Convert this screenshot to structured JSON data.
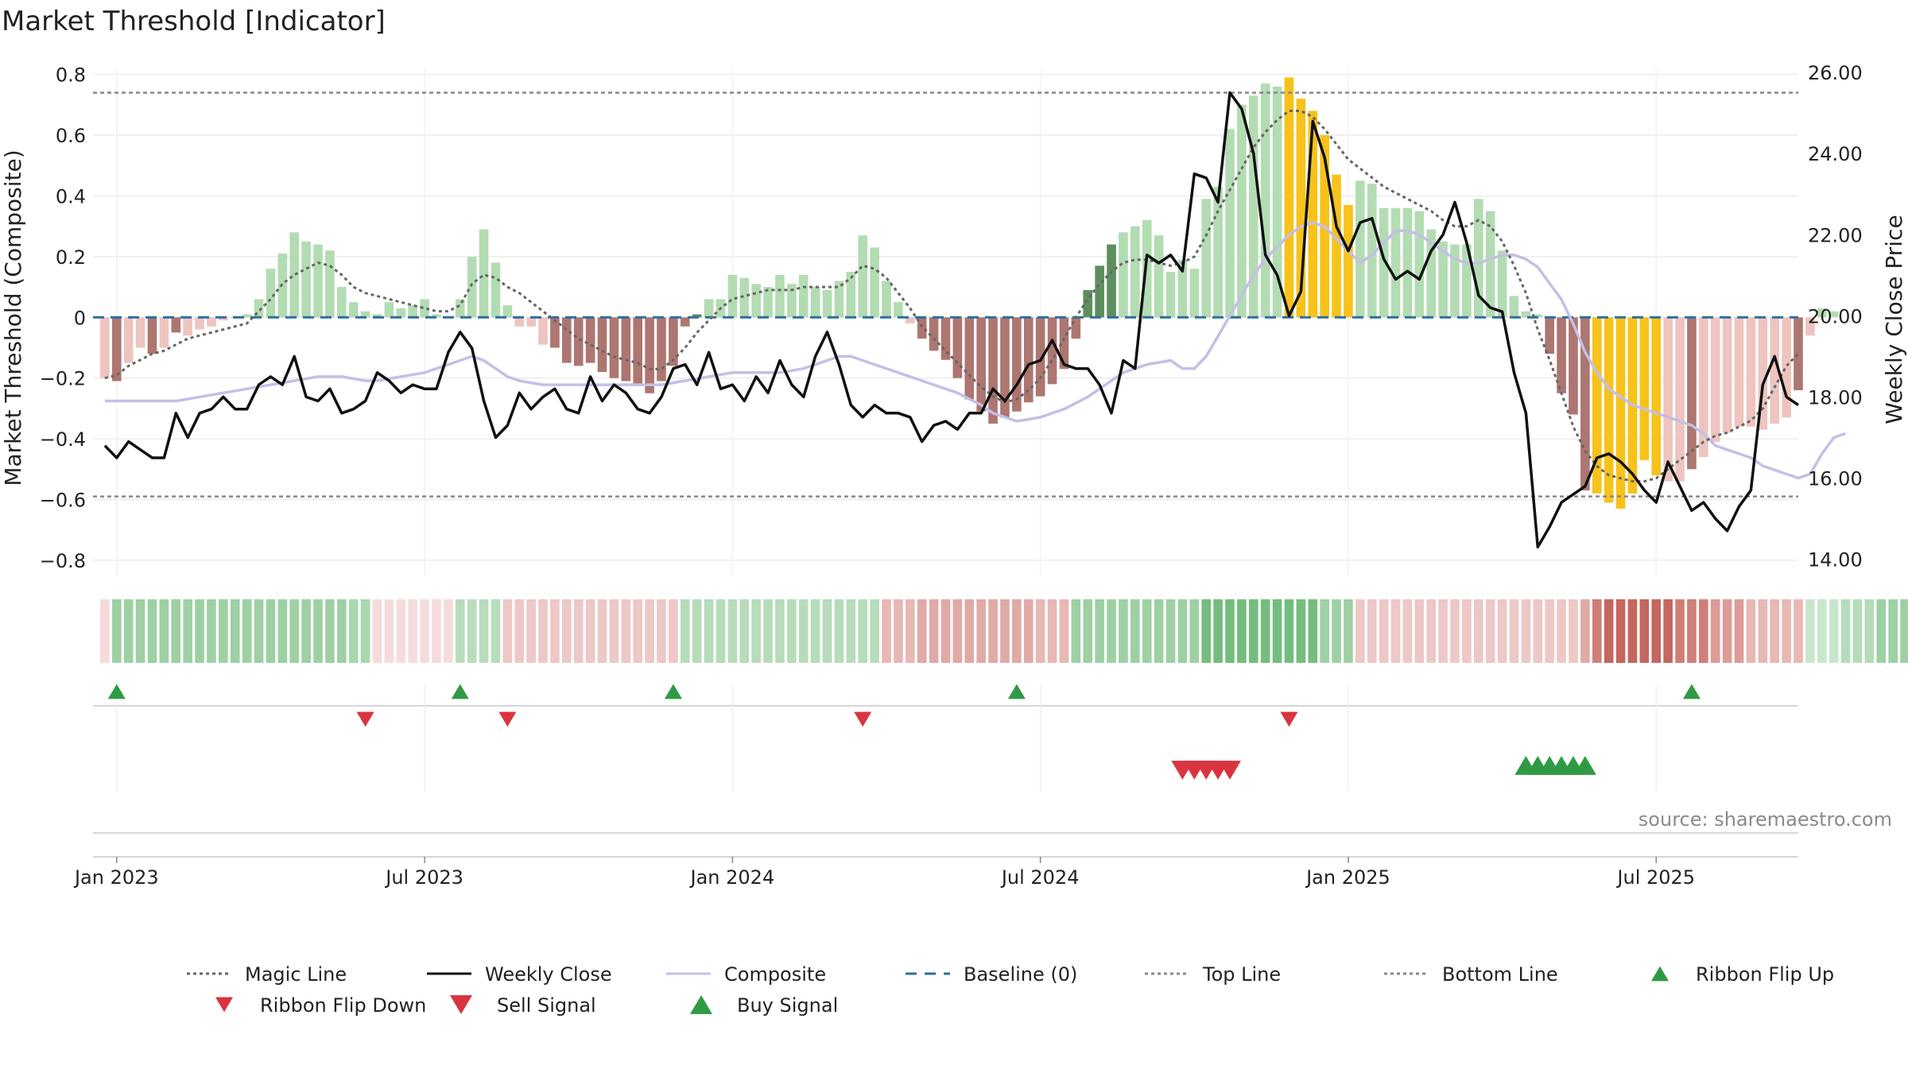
{
  "title": "Market Threshold [Indicator]",
  "source": "source: sharemaestro.com",
  "colors": {
    "strong_green": "#5e8e5e",
    "light_green": "#b3dcb3",
    "strong_red": "#ad7670",
    "light_red": "#eec4bf",
    "extreme": "#f7c21a",
    "magic_line": "#666666",
    "weekly_close": "#111111",
    "composite": "#c4bfe6",
    "baseline": "#2e6e9e",
    "threshold_lines": "#888888",
    "buy": "#2f9a44",
    "sell": "#d9343f"
  },
  "chart_data": {
    "type": "bar",
    "title": "Market Threshold [Indicator]",
    "ylabel": "Market Threshold (Composite)",
    "y2label": "Weekly Close Price",
    "ylim": [
      -0.85,
      0.82
    ],
    "y2lim": [
      13.6,
      26.1
    ],
    "yticks": [
      0.8,
      0.6,
      0.4,
      0.2,
      0,
      -0.2,
      -0.4,
      -0.6,
      -0.8
    ],
    "ytick_labels": [
      "0.8",
      "0.6",
      "0.4",
      "0.2",
      "0",
      "−0.2",
      "−0.4",
      "−0.6",
      "−0.8"
    ],
    "y2ticks": [
      26,
      24,
      22,
      20,
      18,
      16,
      14
    ],
    "y2tick_labels": [
      "26.00",
      "24.00",
      "22.00",
      "20.00",
      "18.00",
      "16.00",
      "14.00"
    ],
    "x_week_range": [
      -1,
      143
    ],
    "xticks": [
      {
        "label": "Jan 2023",
        "week": 1
      },
      {
        "label": "Jul 2023",
        "week": 27
      },
      {
        "label": "Jan 2024",
        "week": 53
      },
      {
        "label": "Jul 2024",
        "week": 79
      },
      {
        "label": "Jan 2025",
        "week": 105
      },
      {
        "label": "Jul 2025",
        "week": 131
      }
    ],
    "top_line": 0.74,
    "bottom_line": -0.59,
    "baseline": 0,
    "weeks": [
      0,
      143
    ],
    "composite_bars": [
      -0.2,
      -0.21,
      -0.15,
      -0.1,
      -0.12,
      -0.1,
      -0.05,
      -0.06,
      -0.04,
      -0.03,
      -0.01,
      0.0,
      0.01,
      0.06,
      0.16,
      0.21,
      0.28,
      0.25,
      0.24,
      0.22,
      0.1,
      0.05,
      0.02,
      0.01,
      0.05,
      0.03,
      0.04,
      0.06,
      0.01,
      0.0,
      0.06,
      0.2,
      0.29,
      0.18,
      0.04,
      -0.03,
      -0.03,
      -0.09,
      -0.1,
      -0.15,
      -0.16,
      -0.15,
      -0.18,
      -0.2,
      -0.21,
      -0.22,
      -0.25,
      -0.21,
      -0.16,
      -0.03,
      0.01,
      0.06,
      0.06,
      0.14,
      0.13,
      0.11,
      0.1,
      0.14,
      0.11,
      0.14,
      0.1,
      0.09,
      0.12,
      0.15,
      0.27,
      0.23,
      0.12,
      0.05,
      -0.02,
      -0.07,
      -0.11,
      -0.14,
      -0.2,
      -0.27,
      -0.31,
      -0.35,
      -0.33,
      -0.31,
      -0.28,
      -0.26,
      -0.22,
      -0.17,
      -0.07,
      0.09,
      0.17,
      0.24,
      0.28,
      0.3,
      0.32,
      0.27,
      0.15,
      0.19,
      0.16,
      0.39,
      0.43,
      0.62,
      0.7,
      0.73,
      0.77,
      0.76,
      0.79,
      0.72,
      0.68,
      0.6,
      0.47,
      0.37,
      0.45,
      0.44,
      0.36,
      0.36,
      0.36,
      0.35,
      0.29,
      0.25,
      0.24,
      0.24,
      0.39,
      0.35,
      0.22,
      0.07,
      0.02,
      0.01,
      -0.12,
      -0.25,
      -0.32,
      -0.57,
      -0.58,
      -0.61,
      -0.63,
      -0.58,
      -0.47,
      -0.52,
      -0.54,
      -0.54,
      -0.5,
      -0.46,
      -0.41,
      -0.38,
      -0.36,
      -0.36,
      -0.37,
      -0.35,
      -0.33,
      -0.24,
      -0.06,
      0.03,
      0.02
    ],
    "bar_color_codes": "LSLLSLSLLLLLGGGGGGGGGGGGGGGGGGGGGGGGLLSSSSSSSSSSSSSGGGGGGGGGGGGGGGGGLSSSSSSSSSSSSSSSSSGGGGGGGGGGGGGGYYYYYYGGGGGGGGGGGGGGGGSSSSYYYYYYLLSLLLLLLLLSLLLLLGG",
    "weekly_close": [
      16.8,
      16.5,
      16.9,
      16.7,
      16.5,
      16.5,
      17.6,
      17.0,
      17.6,
      17.7,
      18.0,
      17.7,
      17.7,
      18.3,
      18.5,
      18.3,
      19.0,
      18.0,
      17.9,
      18.2,
      17.6,
      17.7,
      17.9,
      18.6,
      18.4,
      18.1,
      18.3,
      18.2,
      18.2,
      19.1,
      19.6,
      19.2,
      17.9,
      17.0,
      17.3,
      18.1,
      17.7,
      18.0,
      18.2,
      17.7,
      17.6,
      18.5,
      17.9,
      18.3,
      18.1,
      17.7,
      17.6,
      18.0,
      18.7,
      18.8,
      18.3,
      19.1,
      18.2,
      18.3,
      17.9,
      18.5,
      18.1,
      18.9,
      18.3,
      18.0,
      19.0,
      19.6,
      18.8,
      17.8,
      17.5,
      17.8,
      17.6,
      17.6,
      17.5,
      16.9,
      17.3,
      17.4,
      17.2,
      17.6,
      17.6,
      18.2,
      17.9,
      18.3,
      18.8,
      18.9,
      19.4,
      18.8,
      18.7,
      18.7,
      18.3,
      17.6,
      18.9,
      18.7,
      21.5,
      21.3,
      21.5,
      21.1,
      23.5,
      23.4,
      22.8,
      25.5,
      25.1,
      24.0,
      21.5,
      21.0,
      20.0,
      20.6,
      24.8,
      23.9,
      22.2,
      21.6,
      22.3,
      22.4,
      21.4,
      20.9,
      21.1,
      20.9,
      21.6,
      22.0,
      22.8,
      21.8,
      20.5,
      20.2,
      20.1,
      18.6,
      17.6,
      14.3,
      14.8,
      15.4,
      15.6,
      15.8,
      16.5,
      16.6,
      16.4,
      16.1,
      15.7,
      15.4,
      16.4,
      15.8,
      15.2,
      15.4,
      15.0,
      14.7,
      15.3,
      15.7,
      18.3,
      19.0,
      18.0,
      17.8
    ],
    "composite_line": [
      17.9,
      17.9,
      17.9,
      17.9,
      17.9,
      17.9,
      17.9,
      17.95,
      18.0,
      18.05,
      18.1,
      18.15,
      18.2,
      18.25,
      18.3,
      18.35,
      18.4,
      18.45,
      18.5,
      18.5,
      18.5,
      18.45,
      18.4,
      18.4,
      18.45,
      18.5,
      18.55,
      18.6,
      18.7,
      18.8,
      18.9,
      19.0,
      18.9,
      18.7,
      18.5,
      18.4,
      18.35,
      18.3,
      18.3,
      18.3,
      18.3,
      18.3,
      18.3,
      18.3,
      18.3,
      18.3,
      18.3,
      18.3,
      18.35,
      18.4,
      18.45,
      18.5,
      18.55,
      18.6,
      18.6,
      18.6,
      18.6,
      18.6,
      18.65,
      18.7,
      18.8,
      18.9,
      19.0,
      19.0,
      18.9,
      18.8,
      18.7,
      18.6,
      18.5,
      18.4,
      18.3,
      18.2,
      18.1,
      17.95,
      17.8,
      17.6,
      17.5,
      17.4,
      17.45,
      17.5,
      17.6,
      17.7,
      17.85,
      18.0,
      18.2,
      18.4,
      18.6,
      18.7,
      18.8,
      18.85,
      18.9,
      18.7,
      18.7,
      19.0,
      19.5,
      20.0,
      20.5,
      21.0,
      21.4,
      21.7,
      22.0,
      22.2,
      22.3,
      22.2,
      21.9,
      21.6,
      21.3,
      21.5,
      21.8,
      22.1,
      22.1,
      22.0,
      21.8,
      21.6,
      21.4,
      21.3,
      21.3,
      21.4,
      21.5,
      21.5,
      21.4,
      21.2,
      20.8,
      20.4,
      19.8,
      19.1,
      18.6,
      18.2,
      18.0,
      17.8,
      17.7,
      17.6,
      17.5,
      17.4,
      17.3,
      17.1,
      16.8,
      16.7,
      16.6,
      16.5,
      16.3,
      16.2,
      16.1,
      16.0,
      16.1,
      16.6,
      17.0,
      17.1
    ],
    "magic_line": [
      -0.2,
      -0.19,
      -0.16,
      -0.14,
      -0.12,
      -0.11,
      -0.09,
      -0.07,
      -0.06,
      -0.05,
      -0.04,
      -0.03,
      -0.02,
      0.02,
      0.06,
      0.11,
      0.14,
      0.16,
      0.18,
      0.17,
      0.14,
      0.1,
      0.08,
      0.07,
      0.06,
      0.05,
      0.04,
      0.03,
      0.02,
      0.02,
      0.04,
      0.11,
      0.14,
      0.13,
      0.1,
      0.08,
      0.05,
      0.02,
      -0.01,
      -0.04,
      -0.07,
      -0.09,
      -0.11,
      -0.13,
      -0.14,
      -0.15,
      -0.17,
      -0.17,
      -0.14,
      -0.1,
      -0.05,
      -0.01,
      0.03,
      0.06,
      0.07,
      0.08,
      0.09,
      0.09,
      0.09,
      0.1,
      0.1,
      0.1,
      0.1,
      0.13,
      0.17,
      0.16,
      0.13,
      0.08,
      0.03,
      -0.03,
      -0.07,
      -0.11,
      -0.15,
      -0.19,
      -0.23,
      -0.26,
      -0.28,
      -0.27,
      -0.24,
      -0.2,
      -0.14,
      -0.07,
      0.0,
      0.06,
      0.11,
      0.15,
      0.18,
      0.19,
      0.19,
      0.18,
      0.17,
      0.18,
      0.2,
      0.27,
      0.35,
      0.42,
      0.49,
      0.56,
      0.61,
      0.65,
      0.68,
      0.68,
      0.66,
      0.62,
      0.57,
      0.52,
      0.49,
      0.46,
      0.43,
      0.41,
      0.39,
      0.37,
      0.35,
      0.32,
      0.3,
      0.3,
      0.32,
      0.3,
      0.25,
      0.17,
      0.08,
      -0.04,
      -0.14,
      -0.25,
      -0.36,
      -0.44,
      -0.49,
      -0.52,
      -0.53,
      -0.54,
      -0.54,
      -0.53,
      -0.5,
      -0.47,
      -0.44,
      -0.41,
      -0.39,
      -0.38,
      -0.36,
      -0.34,
      -0.3,
      -0.23,
      -0.16,
      -0.12
    ],
    "ribbon_colors": [
      "#f5dada",
      "#9ed0a4",
      "#9ed0a4",
      "#9ed0a4",
      "#9ed0a4",
      "#9ed0a4",
      "#9ed0a4",
      "#9ed0a4",
      "#9ed0a4",
      "#9ed0a4",
      "#9ed0a4",
      "#9ed0a4",
      "#9ed0a4",
      "#9ed0a4",
      "#9ed0a4",
      "#9ed0a4",
      "#9ed0a4",
      "#9ed0a4",
      "#9ed0a4",
      "#9ed0a4",
      "#9ed0a4",
      "#a9d7ae",
      "#a9d7ae",
      "#f5dcdc",
      "#f5dcdc",
      "#f5dcdc",
      "#f5dcdc",
      "#f5dcdc",
      "#f5dcdc",
      "#f5dcdc",
      "#b8ddbc",
      "#b8ddbc",
      "#b8ddbc",
      "#b8ddbc",
      "#ecc8c6",
      "#ecc8c6",
      "#ecc8c6",
      "#ecc8c6",
      "#ecc8c6",
      "#ecc8c6",
      "#ecc8c6",
      "#ecc8c6",
      "#ecc8c6",
      "#ecc8c6",
      "#ecc8c6",
      "#ecc8c6",
      "#ecc8c6",
      "#ecc8c6",
      "#ecc8c6",
      "#b6dcba",
      "#b6dcba",
      "#b6dcba",
      "#b6dcba",
      "#b6dcba",
      "#b6dcba",
      "#b6dcba",
      "#b6dcba",
      "#b6dcba",
      "#b6dcba",
      "#b6dcba",
      "#b6dcba",
      "#b6dcba",
      "#b6dcba",
      "#b6dcba",
      "#b6dcba",
      "#b6dcba",
      "#e7b8b4",
      "#e7b8b4",
      "#e7b8b4",
      "#e0aaa6",
      "#e0aaa6",
      "#e0aaa6",
      "#e0aaa6",
      "#e0aaa6",
      "#e0aaa6",
      "#e0aaa6",
      "#e0aaa6",
      "#e0aaa6",
      "#e0aaa6",
      "#e7b8b4",
      "#e7b8b4",
      "#e7b8b4",
      "#9ed0a4",
      "#9ed0a4",
      "#9ed0a4",
      "#9ed0a4",
      "#9ed0a4",
      "#9ed0a4",
      "#9ed0a4",
      "#9ed0a4",
      "#9ed0a4",
      "#9ed0a4",
      "#9ed0a4",
      "#74bd7e",
      "#74bd7e",
      "#74bd7e",
      "#74bd7e",
      "#74bd7e",
      "#74bd7e",
      "#74bd7e",
      "#74bd7e",
      "#74bd7e",
      "#74bd7e",
      "#9ed0a4",
      "#9ed0a4",
      "#9ed0a4",
      "#ecc8c6",
      "#ecc8c6",
      "#ecc8c6",
      "#ecc8c6",
      "#ecc8c6",
      "#ecc8c6",
      "#ecc8c6",
      "#ecc8c6",
      "#ecc8c6",
      "#ecc8c6",
      "#ecc8c6",
      "#ecc8c6",
      "#ecc8c6",
      "#ecc8c6",
      "#ecc8c6",
      "#ecc8c6",
      "#ecc8c6",
      "#ecc8c6",
      "#ecc8c6",
      "#e0aaa6",
      "#d07e78",
      "#c5665f",
      "#c5665f",
      "#c5665f",
      "#c5665f",
      "#c5665f",
      "#c5665f",
      "#d07e78",
      "#d07e78",
      "#d07e78",
      "#dc9c97",
      "#dc9c97",
      "#dc9c97",
      "#e7b8b4",
      "#e7b8b4",
      "#e7b8b4",
      "#e7b8b4",
      "#e7b8b4",
      "#c8e6cc",
      "#c8e6cc",
      "#c8e6cc",
      "#b6dcba",
      "#b6dcba",
      "#b6dcba",
      "#9ed0a4",
      "#9ed0a4",
      "#9ed0a4",
      "#9ed0a4"
    ],
    "ribbon_flip_up_weeks": [
      1,
      30,
      48,
      77,
      134
    ],
    "ribbon_flip_down_weeks": [
      22,
      34,
      64,
      100
    ],
    "sell_signal_weeks": [
      91,
      92,
      93,
      94,
      95
    ],
    "buy_signal_weeks": [
      120,
      121,
      122,
      123,
      124,
      125
    ]
  },
  "legend": [
    {
      "label": "Magic Line",
      "kind": "dotted-line",
      "color": "#666666"
    },
    {
      "label": "Weekly Close",
      "kind": "solid-line",
      "color": "#111111"
    },
    {
      "label": "Composite",
      "kind": "solid-line",
      "color": "#c4bfe6"
    },
    {
      "label": "Baseline (0)",
      "kind": "dashed-line",
      "color": "#2e6e9e"
    },
    {
      "label": "Top Line",
      "kind": "dotted-line",
      "color": "#888888"
    },
    {
      "label": "Bottom Line",
      "kind": "dotted-line",
      "color": "#888888"
    },
    {
      "label": "Ribbon Flip Up",
      "kind": "triangle-up",
      "color": "#2f9a44"
    },
    {
      "label": "Ribbon Flip Down",
      "kind": "triangle-down",
      "color": "#d9343f"
    },
    {
      "label": "Sell Signal",
      "kind": "triangle-down-big",
      "color": "#d9343f"
    },
    {
      "label": "Buy Signal",
      "kind": "triangle-up-big",
      "color": "#2f9a44"
    }
  ]
}
